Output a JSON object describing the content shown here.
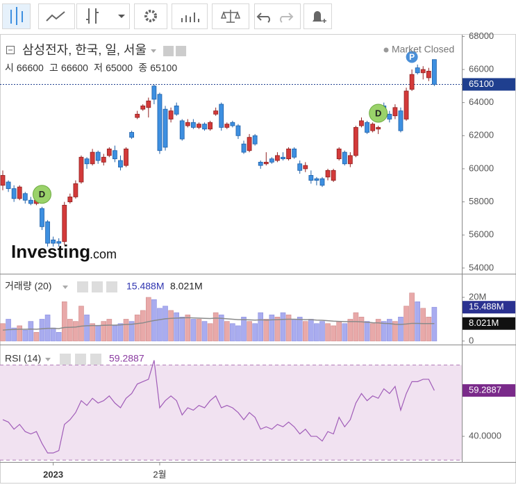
{
  "chart_data": {
    "type": "candlestick",
    "title": "삼성전자, 한국, 일, 서울",
    "status": "Market Closed",
    "header_ohlc": [
      {
        "label": "시",
        "value": 66600
      },
      {
        "label": "고",
        "value": 66600
      },
      {
        "label": "저",
        "value": 65000
      },
      {
        "label": "종",
        "value": 65100
      }
    ],
    "watermark": [
      "Investing",
      ".com"
    ],
    "up_color": "#d33a3a",
    "down_color": "#3d8fe0",
    "ylim": [
      53700,
      68100
    ],
    "yticks": [
      54000,
      56000,
      58000,
      60000,
      62000,
      64000,
      66000,
      68000
    ],
    "last_price": 65100,
    "xticks": [
      {
        "value": 9,
        "label": "2023"
      },
      {
        "value": 28,
        "label": "2월"
      }
    ],
    "markers": [
      {
        "label": "D",
        "index": 7
      },
      {
        "label": "D",
        "index": 67
      },
      {
        "label": "P",
        "index": 73
      }
    ],
    "ohlc": [
      [
        59000,
        59900,
        58700,
        59600
      ],
      [
        59200,
        59300,
        58600,
        58800
      ],
      [
        58800,
        59000,
        58000,
        58200
      ],
      [
        58200,
        59000,
        58100,
        58900
      ],
      [
        58500,
        58600,
        57900,
        58100
      ],
      [
        58100,
        58300,
        57800,
        57900
      ],
      [
        57900,
        58300,
        57800,
        58100
      ],
      [
        57600,
        57700,
        56300,
        56500
      ],
      [
        56800,
        56900,
        55300,
        55500
      ],
      [
        55700,
        55900,
        55300,
        55500
      ],
      [
        55600,
        55800,
        55300,
        55500
      ],
      [
        55600,
        58000,
        55400,
        57800
      ],
      [
        58000,
        58500,
        57900,
        58300
      ],
      [
        58300,
        59300,
        58200,
        59100
      ],
      [
        59200,
        60800,
        59100,
        60700
      ],
      [
        60600,
        60700,
        60000,
        60300
      ],
      [
        60300,
        61200,
        60200,
        61000
      ],
      [
        61000,
        61100,
        60300,
        60500
      ],
      [
        60400,
        60900,
        60200,
        60700
      ],
      [
        60800,
        61300,
        60700,
        61200
      ],
      [
        61100,
        61400,
        60400,
        60600
      ],
      [
        60500,
        60800,
        59900,
        60100
      ],
      [
        60200,
        61300,
        60100,
        61200
      ],
      [
        62200,
        62300,
        61800,
        61900
      ],
      [
        63100,
        63500,
        63000,
        63300
      ],
      [
        63600,
        63900,
        63500,
        63800
      ],
      [
        63700,
        64300,
        63100,
        64100
      ],
      [
        65000,
        65100,
        63900,
        64200
      ],
      [
        64500,
        64600,
        60900,
        61100
      ],
      [
        63600,
        63800,
        61100,
        61300
      ],
      [
        63000,
        63700,
        62800,
        63500
      ],
      [
        63800,
        64000,
        63200,
        63300
      ],
      [
        62900,
        63000,
        61700,
        61800
      ],
      [
        62600,
        63000,
        62500,
        62800
      ],
      [
        62800,
        63000,
        62400,
        62500
      ],
      [
        62500,
        62800,
        62400,
        62700
      ],
      [
        62700,
        62800,
        62300,
        62400
      ],
      [
        62400,
        62900,
        62300,
        62800
      ],
      [
        63300,
        63700,
        63200,
        63500
      ],
      [
        63900,
        64000,
        62300,
        62500
      ],
      [
        62500,
        62800,
        62400,
        62700
      ],
      [
        62800,
        62900,
        62500,
        62600
      ],
      [
        62600,
        62700,
        61800,
        62000
      ],
      [
        61500,
        61700,
        60900,
        61000
      ],
      [
        61100,
        62100,
        61000,
        61900
      ],
      [
        62000,
        62100,
        61400,
        61500
      ],
      [
        60400,
        60500,
        60000,
        60200
      ],
      [
        60300,
        61000,
        60200,
        60400
      ],
      [
        60600,
        60700,
        60300,
        60400
      ],
      [
        60500,
        61000,
        60400,
        60800
      ],
      [
        60700,
        61000,
        60500,
        60600
      ],
      [
        60600,
        61300,
        60500,
        61200
      ],
      [
        61200,
        61300,
        60600,
        60700
      ],
      [
        60300,
        60500,
        59700,
        59900
      ],
      [
        60000,
        60400,
        59800,
        60200
      ],
      [
        59600,
        59900,
        59100,
        59300
      ],
      [
        59400,
        59500,
        59000,
        59300
      ],
      [
        59400,
        59500,
        58900,
        59000
      ],
      [
        59500,
        60000,
        59300,
        59900
      ],
      [
        59300,
        60000,
        59200,
        59900
      ],
      [
        60600,
        61300,
        60500,
        61200
      ],
      [
        61000,
        61100,
        60200,
        60300
      ],
      [
        60300,
        61000,
        60100,
        60800
      ],
      [
        60800,
        62600,
        60700,
        62500
      ],
      [
        62600,
        63100,
        62500,
        62900
      ],
      [
        62800,
        62900,
        62100,
        62200
      ],
      [
        62300,
        62800,
        62200,
        62700
      ],
      [
        62400,
        62600,
        62100,
        62500
      ],
      [
        63800,
        64000,
        63100,
        63200
      ],
      [
        63300,
        63500,
        62800,
        63000
      ],
      [
        63200,
        63900,
        63000,
        63700
      ],
      [
        63500,
        63700,
        62200,
        62300
      ],
      [
        63000,
        64900,
        62900,
        64700
      ],
      [
        64800,
        66000,
        64700,
        65700
      ],
      [
        66100,
        66300,
        65700,
        65800
      ],
      [
        65800,
        66200,
        65400,
        66000
      ],
      [
        65500,
        66100,
        65300,
        65900
      ],
      [
        66600,
        66600,
        65000,
        65100
      ]
    ],
    "volume": {
      "title": "거래량 (20)",
      "up_color": "#e8a9a9",
      "down_color": "#a9acef",
      "ma_color": "#8a8a8a",
      "ylim": [
        -1.3,
        30.5
      ],
      "yticks": [
        0,
        {
          "value": 20,
          "label": "20M"
        }
      ],
      "values": [
        8,
        10,
        6,
        7,
        5,
        9,
        4,
        10,
        12,
        6,
        4,
        18,
        10,
        9,
        16,
        12,
        8,
        7,
        9,
        10,
        7,
        8,
        10,
        9,
        12,
        14,
        20,
        19,
        15,
        16,
        14,
        13,
        11,
        12,
        10,
        10,
        9,
        8,
        13,
        12,
        9,
        8,
        7,
        11,
        9,
        8,
        13,
        10,
        12,
        11,
        13,
        12,
        10,
        11,
        9,
        10,
        8,
        9,
        8,
        7,
        9,
        8,
        10,
        13,
        11,
        9,
        8,
        10,
        9,
        10,
        9,
        11,
        16,
        22,
        18,
        15,
        11,
        15.488
      ],
      "last_label": "15.488M",
      "ma": {
        "values": [
          5,
          5.2,
          5.3,
          5.4,
          5.4,
          5.5,
          5.4,
          5.6,
          5.8,
          5.8,
          5.7,
          6.2,
          6.3,
          6.4,
          6.8,
          7,
          7.1,
          7.1,
          7.2,
          7.3,
          7.3,
          7.4,
          7.6,
          7.7,
          8,
          8.3,
          8.9,
          9.4,
          9.8,
          10.2,
          10.4,
          10.5,
          10.6,
          10.7,
          10.6,
          10.5,
          10.4,
          10.3,
          10.5,
          10.4,
          10.2,
          10,
          9.8,
          9.8,
          9.7,
          9.6,
          9.7,
          9.6,
          9.7,
          9.8,
          9.9,
          10,
          10,
          9.9,
          9.8,
          9.8,
          9.6,
          9.5,
          9.3,
          9.1,
          9,
          8.9,
          8.9,
          8.9,
          8.8,
          8.6,
          8.4,
          8.3,
          8.1,
          8,
          7.7,
          7.6,
          7.8,
          8.1,
          8.1,
          8,
          8,
          8.021
        ],
        "last_label": "8.021M"
      }
    },
    "rsi": {
      "title": "RSI (14)",
      "color": "#a05cb8",
      "band_color": "#f1e2f1",
      "ylim": [
        29.2,
        78.3
      ],
      "yticks": [
        {
          "value": 40,
          "label": "40.0000"
        }
      ],
      "bands": [
        30,
        70
      ],
      "values": [
        47,
        46,
        43,
        45,
        42,
        41,
        42,
        37,
        33,
        33,
        34,
        45,
        47,
        50,
        55,
        53,
        56,
        54,
        55,
        57,
        54,
        52,
        56,
        58,
        62,
        63,
        64,
        72,
        52,
        55,
        57,
        55,
        49,
        52,
        51,
        53,
        52,
        55,
        57,
        52,
        53,
        52,
        50,
        47,
        50,
        48,
        43,
        44,
        43,
        45,
        44,
        46,
        44,
        41,
        43,
        40,
        40,
        38,
        42,
        41,
        48,
        44,
        47,
        54,
        58,
        55,
        57,
        56,
        60,
        58,
        61,
        51,
        58,
        63,
        63,
        64,
        64,
        59.2887
      ],
      "last_label": "59.2887"
    }
  }
}
